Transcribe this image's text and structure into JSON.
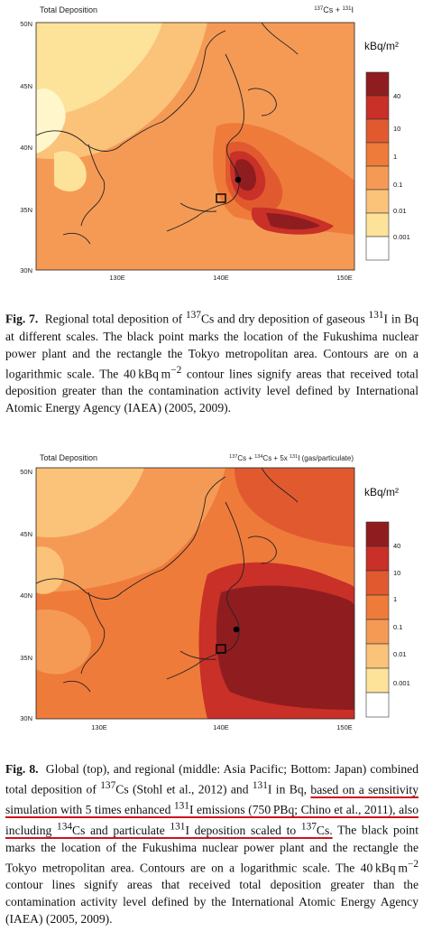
{
  "colors": {
    "levels": [
      "#ffffff",
      "#fff6cc",
      "#fde39a",
      "#fbc27a",
      "#f59a55",
      "#ef7b3a",
      "#e15a2f",
      "#c93028",
      "#8f1d1f"
    ],
    "ocean_level": "#f59a55"
  },
  "figures": [
    {
      "id": "fig7",
      "header_left": "Total Deposition",
      "header_right_html": "<tspan baseline-shift='super' font-size='6'>137</tspan><tspan>Cs + </tspan><tspan baseline-shift='super' font-size='6'>131</tspan><tspan>I</tspan>",
      "unit": "kBq/m²",
      "legend_labels": [
        "40",
        "10",
        "1",
        "0.1",
        "0.01",
        "0.001"
      ],
      "y_ticks": [
        "50N",
        "45N",
        "40N",
        "35N",
        "30N"
      ],
      "x_ticks": [
        "130E",
        "140E",
        "150E"
      ],
      "caption_label": "Fig. 7.",
      "caption_text": "Regional total deposition of 137Cs and dry deposition of gaseous 131I in Bq at different scales. The black point marks the location of the Fukushima nuclear power plant and the rectangle the Tokyo metropolitan area. Contours are on a logarithmic scale. The 40 kBq m−2 contour lines signify areas that received total deposition greater than the contamination activity level defined by International Atomic Energy Agency (IAEA) (2005, 2009)."
    },
    {
      "id": "fig8",
      "header_left": "Total Deposition",
      "header_right": "137Cs + 134Cs + 5x 131I (gas/particulate)",
      "unit": "kBq/m²",
      "legend_labels": [
        "40",
        "10",
        "1",
        "0.1",
        "0.01",
        "0.001"
      ],
      "y_ticks": [
        "50N",
        "45N",
        "40N",
        "35N",
        "30N"
      ],
      "x_ticks": [
        "130E",
        "140E",
        "150E"
      ],
      "caption_label": "Fig. 8.",
      "caption_text": "Global (top), and regional (middle: Asia Pacific; Bottom: Japan) combined total deposition of 137Cs (Stohl et al., 2012) and 131I in Bq, based on a sensitivity simulation with 5 times enhanced 131I emissions (750 PBq; Chino et al., 2011), also including 134Cs and particulate 131I deposition scaled to 137Cs. The black point marks the location of the Fukushima nuclear power plant and the rectangle the Tokyo metropolitan area. Contours are on a logarithmic scale. The 40 kBq m−2 contour lines signify areas that received total deposition greater than the contamination activity level defined by the International Atomic Energy Agency (IAEA) (2005, 2009)."
    }
  ]
}
